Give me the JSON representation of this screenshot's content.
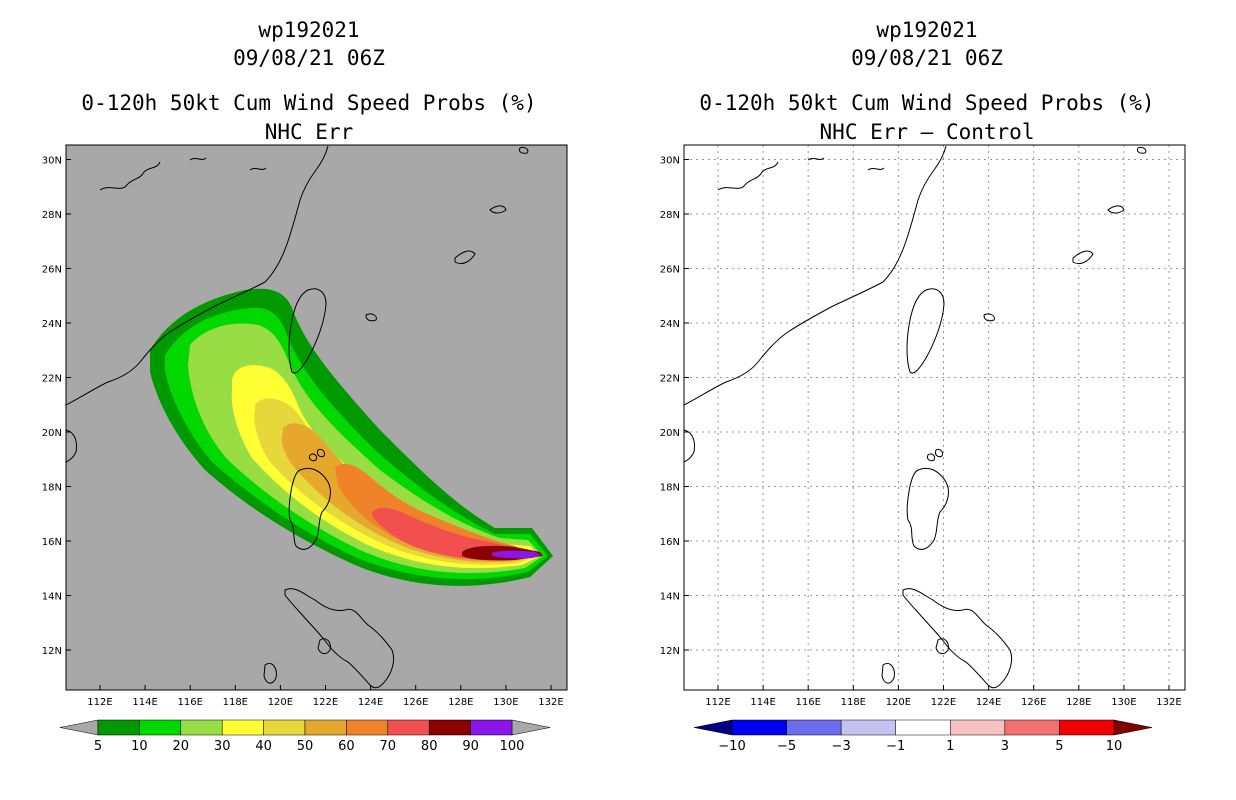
{
  "left_panel": {
    "title_line1": "wp192021",
    "title_line2": "09/08/21 06Z",
    "title_line3": "0-120h 50kt Cum Wind Speed Probs (%)",
    "title_line4": "NHC Err",
    "colorbar_labels": [
      "5",
      "10",
      "20",
      "30",
      "40",
      "50",
      "60",
      "70",
      "80",
      "90",
      "100"
    ],
    "colorbar_colors": [
      "#009a00",
      "#00d800",
      "#99dd44",
      "#ffff33",
      "#e6d83a",
      "#e5a82d",
      "#f08229",
      "#f24f4f",
      "#8b0000",
      "#8a16e8"
    ],
    "below_color": "#a8a8a8",
    "above_color": "#a8a8a8",
    "background_color": "#a8a8a8"
  },
  "right_panel": {
    "title_line1": "wp192021",
    "title_line2": "09/08/21 06Z",
    "title_line3": "0-120h 50kt Cum Wind Speed Probs (%)",
    "title_line4": "NHC Err – Control",
    "colorbar_labels": [
      "−10",
      "−5",
      "−3",
      "−1",
      "1",
      "3",
      "5",
      "10"
    ],
    "colorbar_colors": [
      "#0000f0",
      "#6b6bf0",
      "#c2c2f0",
      "#ffffff",
      "#f8c2c2",
      "#f27070",
      "#f00000"
    ],
    "below_color": "#000080",
    "above_color": "#800000",
    "background_color": "#ffffff"
  },
  "map": {
    "lon_labels": [
      "112E",
      "114E",
      "116E",
      "118E",
      "120E",
      "122E",
      "124E",
      "126E",
      "128E",
      "130E",
      "132E"
    ],
    "lat_labels": [
      "12N",
      "14N",
      "16N",
      "18N",
      "20N",
      "22N",
      "24N",
      "26N",
      "28N",
      "30N"
    ]
  }
}
